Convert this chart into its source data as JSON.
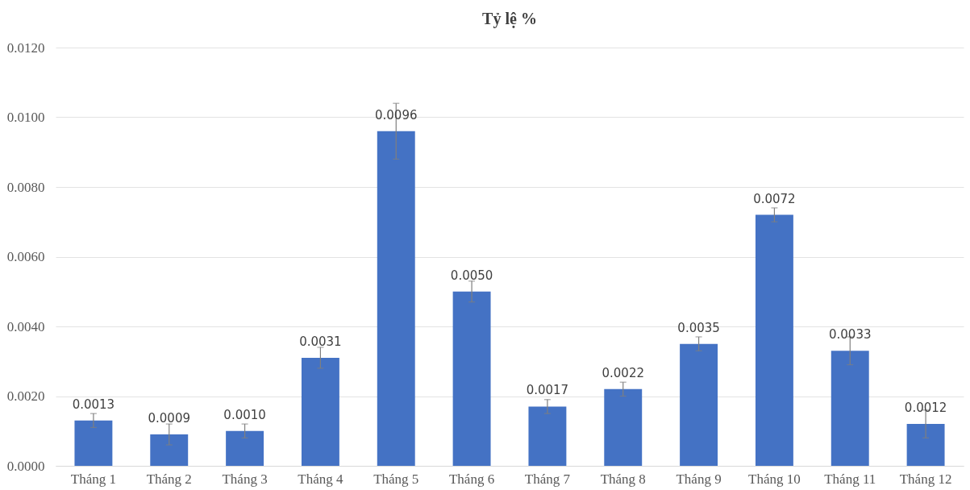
{
  "chart_data": {
    "type": "bar",
    "title": "Tỷ lệ %",
    "categories": [
      "Tháng 1",
      "Tháng 2",
      "Tháng 3",
      "Tháng 4",
      "Tháng 5",
      "Tháng 6",
      "Tháng 7",
      "Tháng 8",
      "Tháng 9",
      "Tháng 10",
      "Tháng 11",
      "Tháng 12"
    ],
    "values": [
      0.0013,
      0.0009,
      0.001,
      0.0031,
      0.0096,
      0.005,
      0.0017,
      0.0022,
      0.0035,
      0.0072,
      0.0033,
      0.0012
    ],
    "value_labels": [
      "0.0013",
      "0.0009",
      "0.0010",
      "0.0031",
      "0.0096",
      "0.0050",
      "0.0017",
      "0.0022",
      "0.0035",
      "0.0072",
      "0.0033",
      "0.0012"
    ],
    "errors": [
      0.0002,
      0.0003,
      0.0002,
      0.0003,
      0.0008,
      0.0003,
      0.0002,
      0.0002,
      0.0002,
      0.0002,
      0.0004,
      0.0004
    ],
    "color": "#4472c4",
    "ylim": [
      0,
      0.012
    ],
    "yticks": [
      {
        "value": 0,
        "label": "0.0000"
      },
      {
        "value": 0.002,
        "label": "0.0020"
      },
      {
        "value": 0.004,
        "label": "0.0040"
      },
      {
        "value": 0.006,
        "label": "0.0060"
      },
      {
        "value": 0.008,
        "label": "0.0080"
      },
      {
        "value": 0.01,
        "label": "0.0100"
      },
      {
        "value": 0.012,
        "label": "0.0120"
      }
    ],
    "grid": "y"
  }
}
